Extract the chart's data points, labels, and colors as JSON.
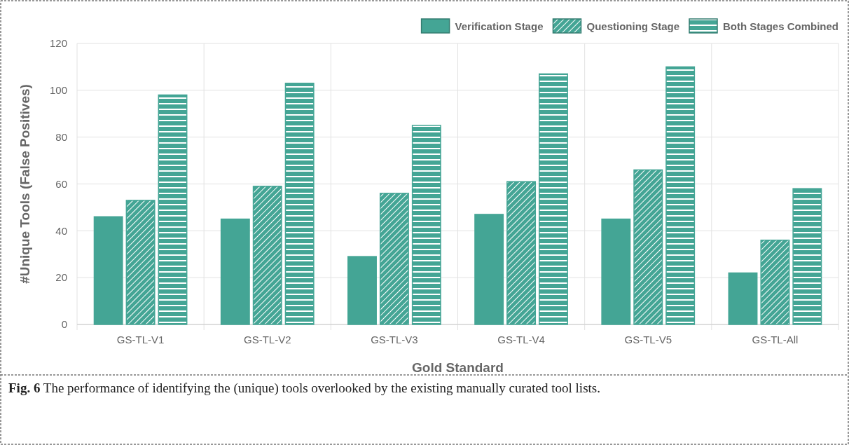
{
  "chart_data": {
    "type": "bar",
    "categories": [
      "GS-TL-V1",
      "GS-TL-V2",
      "GS-TL-V3",
      "GS-TL-V4",
      "GS-TL-V5",
      "GS-TL-All"
    ],
    "series": [
      {
        "name": "Verification Stage",
        "color": "#44a595",
        "values": [
          46,
          45,
          29,
          47,
          45,
          22
        ]
      },
      {
        "name": "Questioning Stage",
        "color": "#44a595",
        "values": [
          53,
          59,
          56,
          61,
          66,
          36
        ]
      },
      {
        "name": "Both Stages Combined",
        "color": "#44a595",
        "values": [
          98,
          103,
          85,
          107,
          110,
          58
        ]
      }
    ],
    "xlabel": "Gold Standard",
    "ylabel": "#Unique Tools (False Positives)",
    "ylim": [
      0,
      120
    ],
    "yticks": [
      0,
      20,
      40,
      60,
      80,
      100,
      120
    ],
    "grid": true,
    "legend": "top right",
    "annotations": [
      "Fig. 6 The performance of identifying the (unique) tools overlooked by the existing manually curated tool lists."
    ]
  }
}
